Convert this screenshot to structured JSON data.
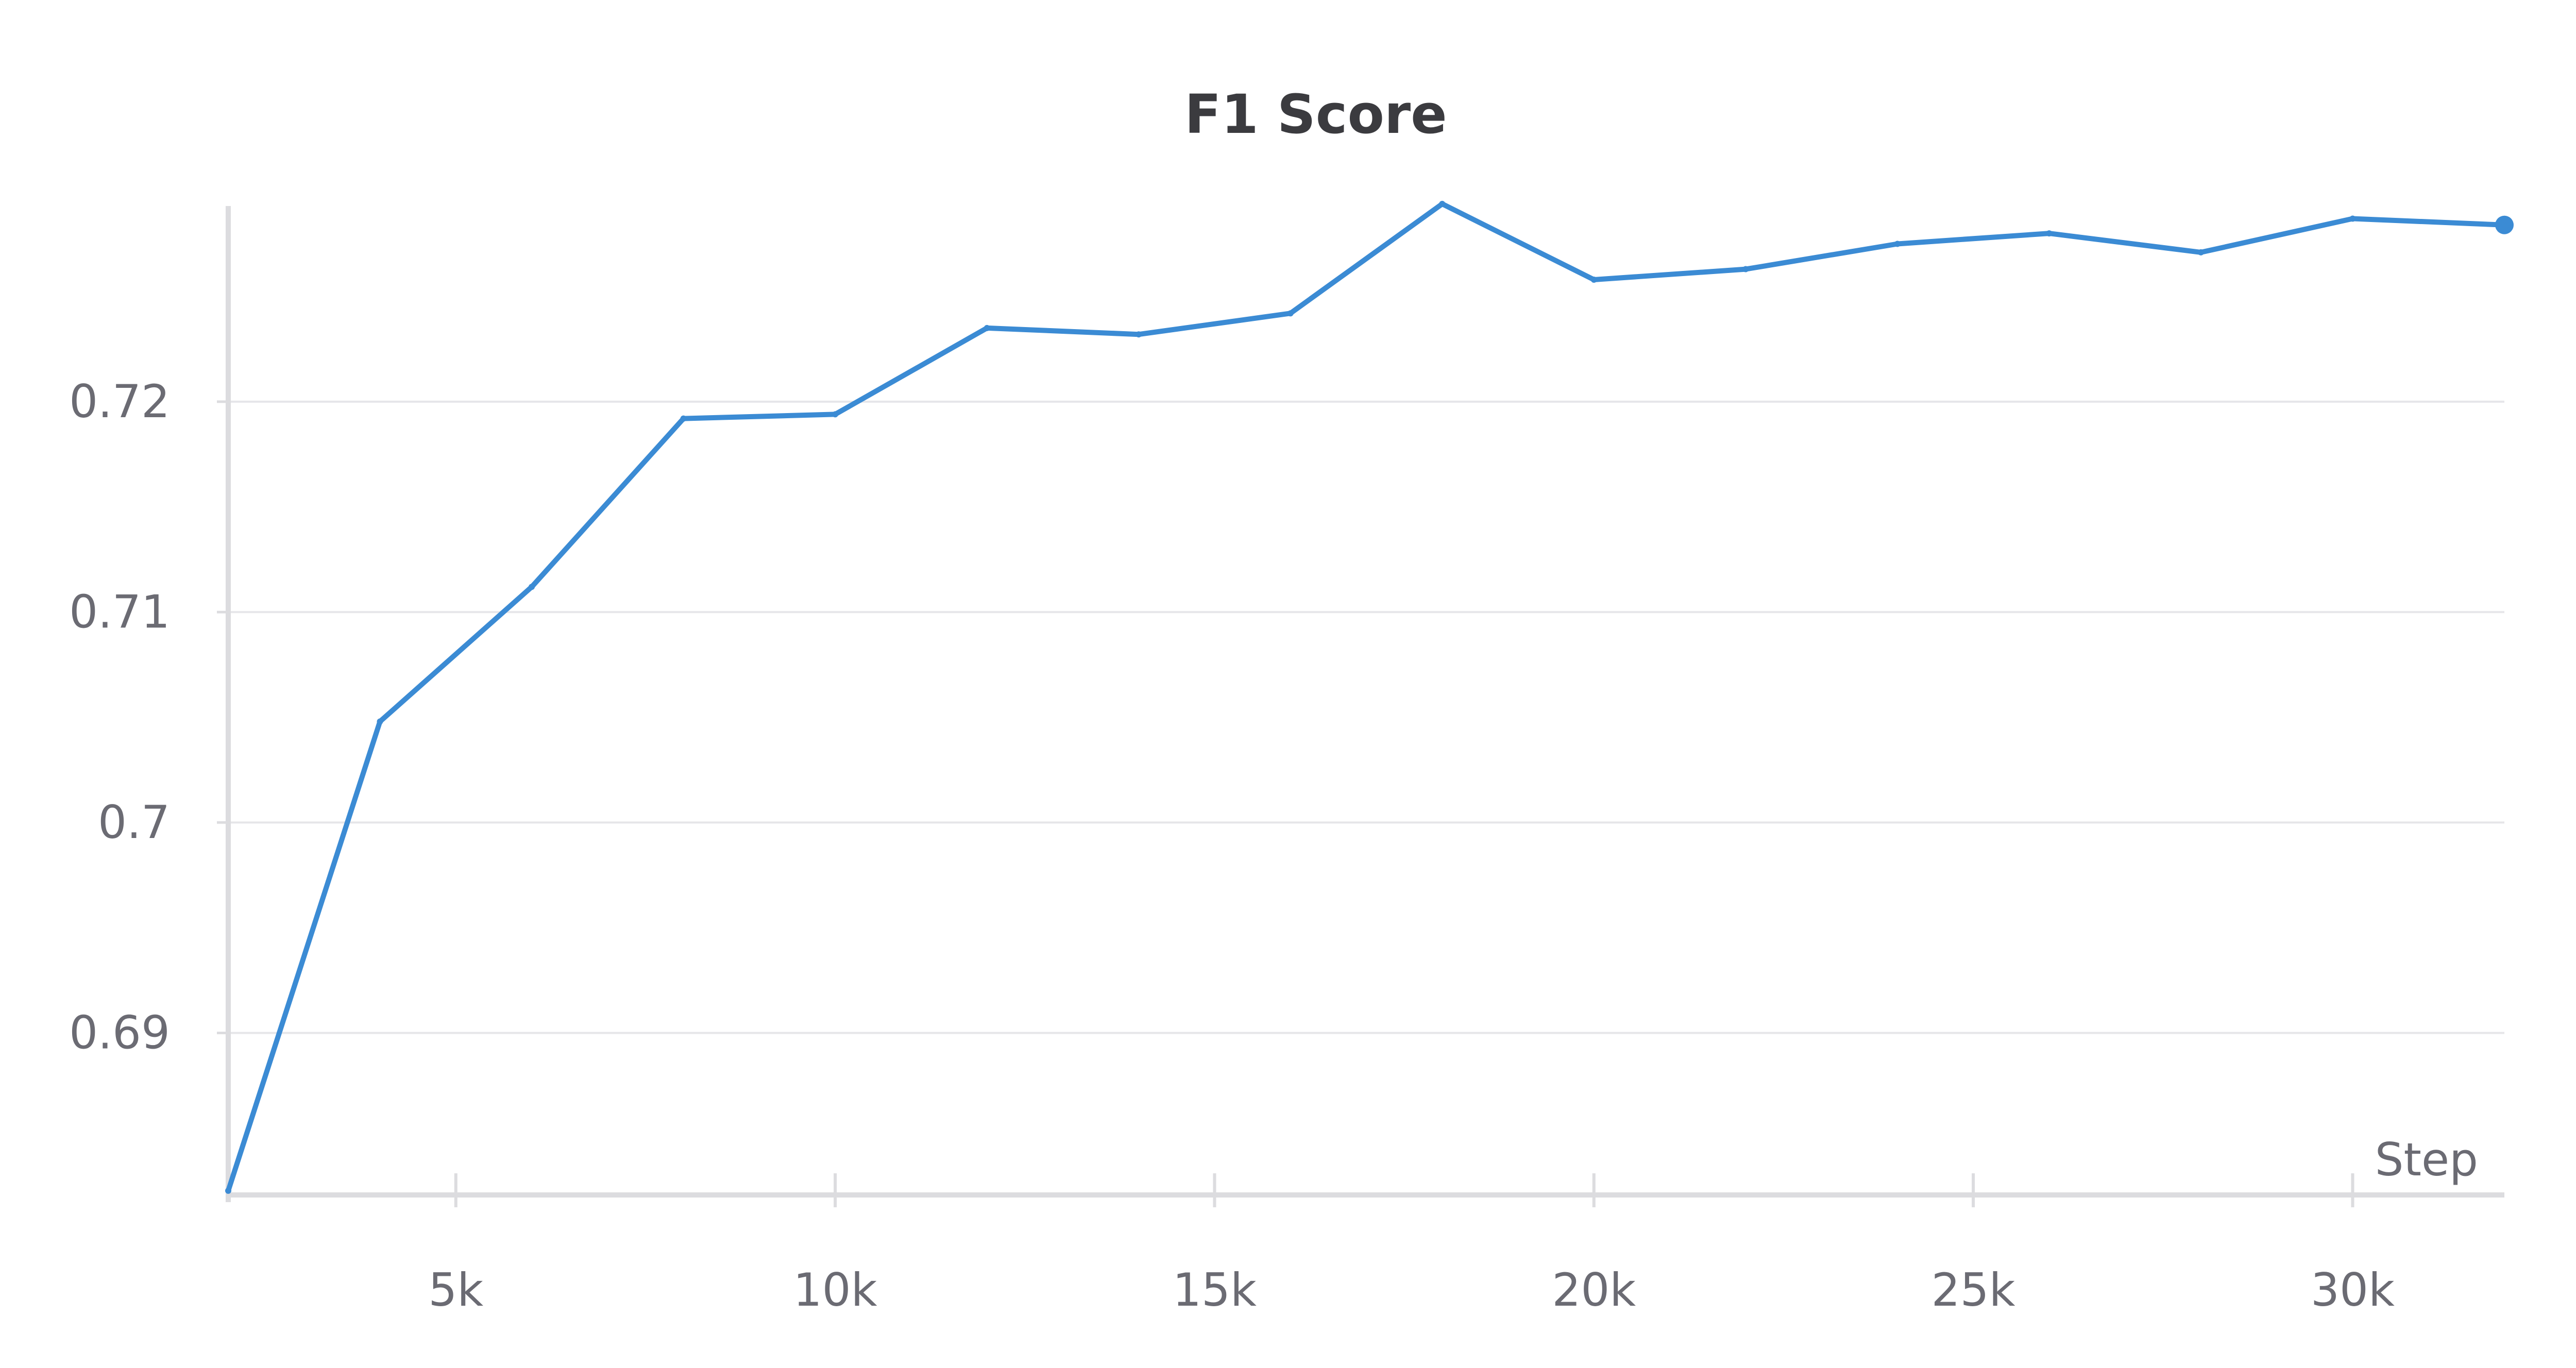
{
  "chart_data": {
    "type": "line",
    "title": "F1 Score",
    "xlabel": "Step",
    "ylabel": "",
    "x_ticks": [
      "5k",
      "10k",
      "15k",
      "20k",
      "25k",
      "30k"
    ],
    "x_tick_values": [
      5000,
      10000,
      15000,
      20000,
      25000,
      30000
    ],
    "y_ticks": [
      "0.69",
      "0.7",
      "0.71",
      "0.72"
    ],
    "y_tick_values": [
      0.69,
      0.7,
      0.71,
      0.72
    ],
    "xlim": [
      2000,
      32000
    ],
    "ylim": [
      0.6823,
      0.7293
    ],
    "grid": "horizontal",
    "series": [
      {
        "color": "#3b8bd4",
        "x": [
          2000,
          4000,
          6000,
          8000,
          10000,
          12000,
          14000,
          16000,
          18000,
          20000,
          22000,
          24000,
          26000,
          28000,
          30000,
          32000
        ],
        "y": [
          0.6825,
          0.7048,
          0.7112,
          0.7192,
          0.7194,
          0.7235,
          0.7232,
          0.7242,
          0.7294,
          0.7258,
          0.7263,
          0.7275,
          0.728,
          0.7271,
          0.7287,
          0.7284
        ]
      }
    ]
  }
}
